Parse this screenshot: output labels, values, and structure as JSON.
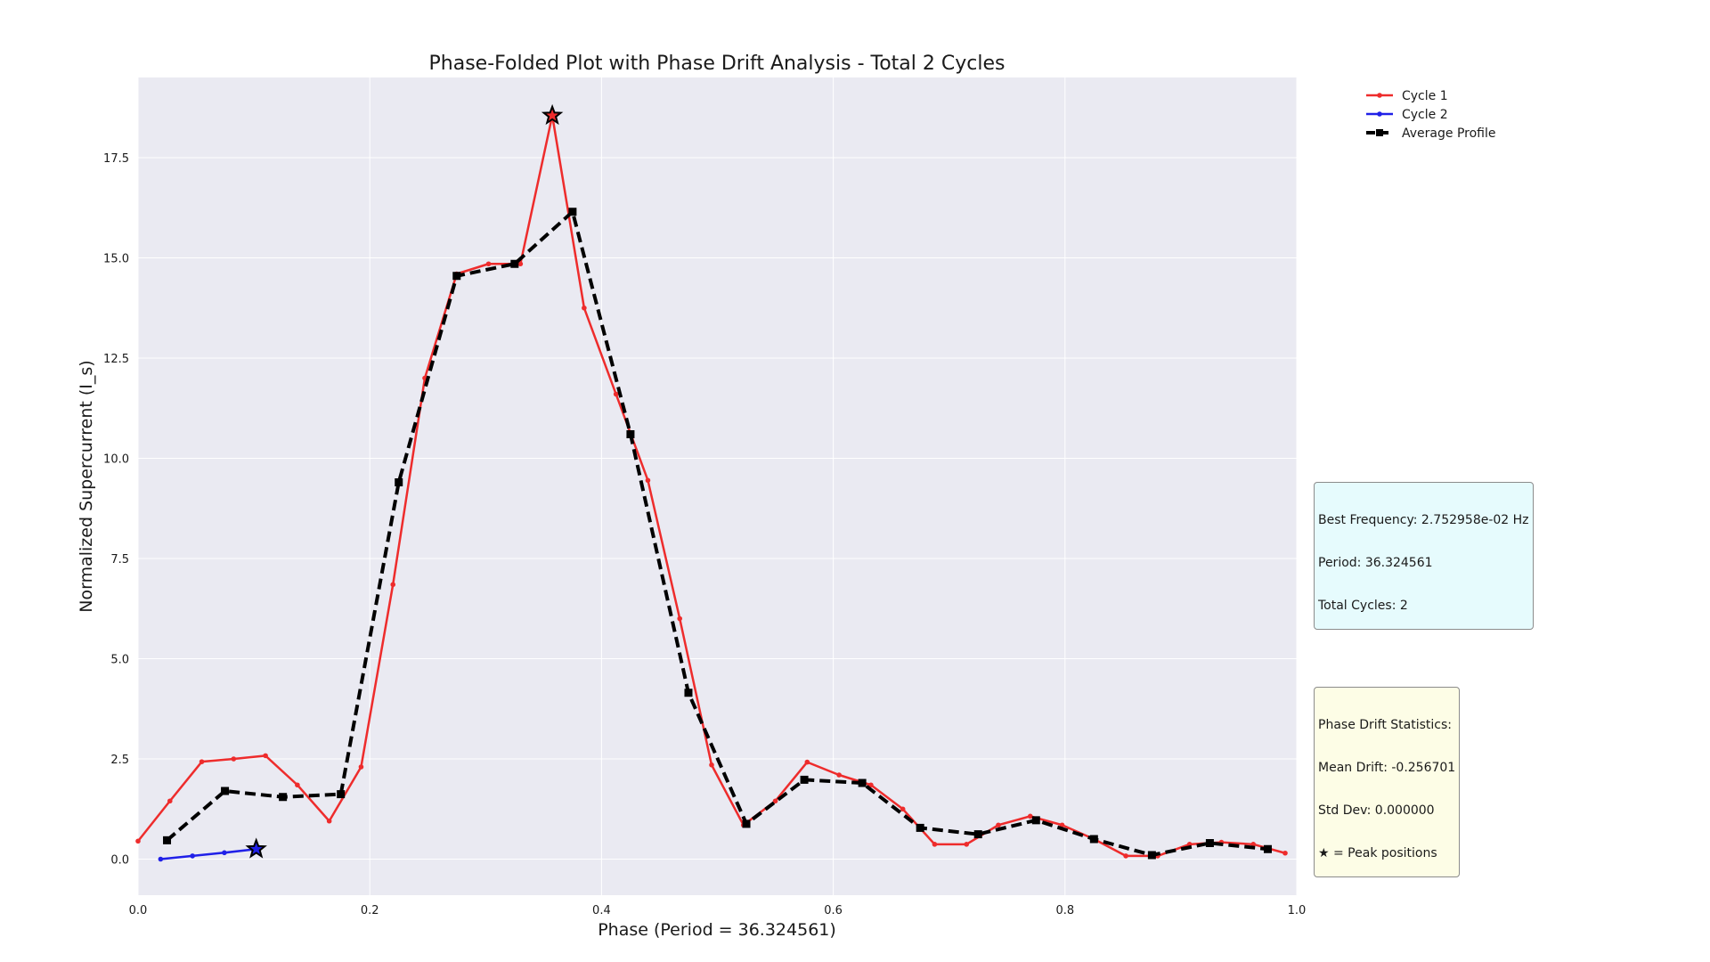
{
  "chart_data": {
    "type": "line",
    "title": "Phase-Folded Plot with Phase Drift Analysis - Total 2 Cycles",
    "xlabel": "Phase (Period = 36.324561)",
    "ylabel": "Normalized Supercurrent (I_s)",
    "xlim": [
      0.0,
      1.0
    ],
    "ylim": [
      -0.9,
      19.5
    ],
    "xticks": [
      0.0,
      0.2,
      0.4,
      0.6,
      0.8,
      1.0
    ],
    "xtick_labels": [
      "0.0",
      "0.2",
      "0.4",
      "0.6",
      "0.8",
      "1.0"
    ],
    "yticks": [
      0.0,
      2.5,
      5.0,
      7.5,
      10.0,
      12.5,
      15.0,
      17.5
    ],
    "ytick_labels": [
      "0.0",
      "2.5",
      "5.0",
      "7.5",
      "10.0",
      "12.5",
      "15.0",
      "17.5"
    ],
    "grid": true,
    "legend_position": "outside top-right",
    "series": [
      {
        "name": "Cycle 1",
        "color": "#ee2c2c",
        "marker": "dot",
        "x": [
          0.0,
          0.0275,
          0.055,
          0.0825,
          0.11,
          0.1375,
          0.165,
          0.1925,
          0.22,
          0.2475,
          0.275,
          0.3025,
          0.33,
          0.3575,
          0.385,
          0.4125,
          0.44,
          0.4675,
          0.495,
          0.5225,
          0.55,
          0.5775,
          0.605,
          0.6325,
          0.66,
          0.6875,
          0.715,
          0.7425,
          0.77,
          0.7975,
          0.825,
          0.8525,
          0.88,
          0.9075,
          0.935,
          0.9625,
          0.99
        ],
        "y": [
          0.45,
          1.45,
          2.43,
          2.5,
          2.58,
          1.85,
          0.95,
          2.3,
          6.85,
          12.0,
          14.6,
          14.85,
          14.85,
          18.55,
          13.75,
          11.6,
          9.45,
          6.0,
          2.35,
          0.85,
          1.45,
          2.42,
          2.1,
          1.85,
          1.25,
          0.37,
          0.37,
          0.85,
          1.07,
          0.85,
          0.5,
          0.08,
          0.08,
          0.37,
          0.42,
          0.37,
          0.15
        ]
      },
      {
        "name": "Cycle 2",
        "color": "#2020e8",
        "marker": "dot",
        "x": [
          0.0195,
          0.047,
          0.0745,
          0.102
        ],
        "y": [
          0.0,
          0.08,
          0.16,
          0.25
        ]
      },
      {
        "name": "Average Profile",
        "color": "#000000",
        "marker": "square",
        "dashed": true,
        "x": [
          0.025,
          0.075,
          0.125,
          0.175,
          0.225,
          0.275,
          0.325,
          0.375,
          0.425,
          0.475,
          0.525,
          0.575,
          0.625,
          0.675,
          0.725,
          0.775,
          0.825,
          0.875,
          0.925,
          0.975
        ],
        "y": [
          0.47,
          1.7,
          1.55,
          1.62,
          9.4,
          14.55,
          14.85,
          16.15,
          10.6,
          4.15,
          0.88,
          1.98,
          1.9,
          0.78,
          0.62,
          0.97,
          0.5,
          0.1,
          0.4,
          0.25
        ]
      }
    ],
    "peaks": [
      {
        "series": "Cycle 1",
        "x": 0.3575,
        "y": 18.55
      },
      {
        "series": "Cycle 2",
        "x": 0.102,
        "y": 0.25
      }
    ],
    "info_box": {
      "lines": [
        "Best Frequency: 2.752958e-02 Hz",
        "Period: 36.324561",
        "Total Cycles: 2"
      ],
      "color": "#e6fbfd"
    },
    "stats_box": {
      "lines": [
        "Phase Drift Statistics:",
        "Mean Drift: -0.256701",
        "Std Dev: 0.000000",
        "★ = Peak positions"
      ],
      "color": "#fdfde6"
    }
  }
}
